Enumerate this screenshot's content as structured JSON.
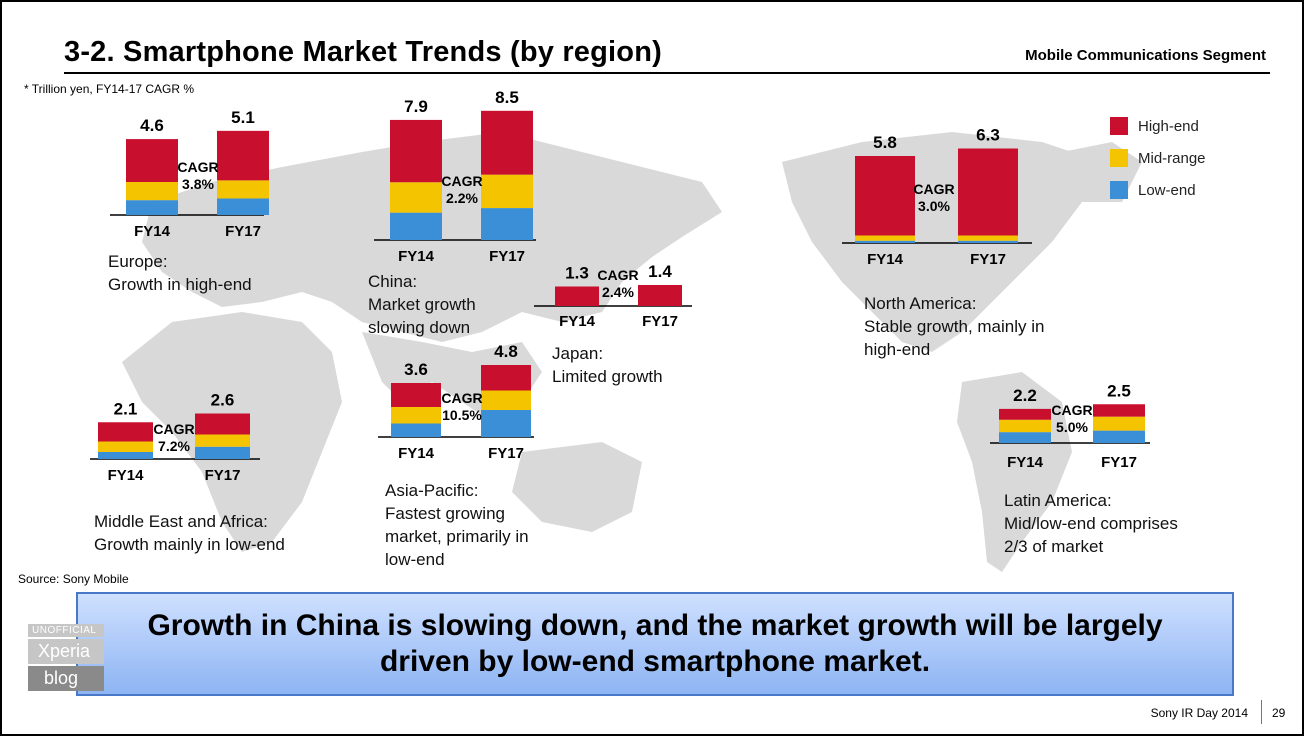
{
  "header": {
    "title": "3-2. Smartphone Market Trends (by region)",
    "segment": "Mobile Communications Segment",
    "note": "* Trillion yen, FY14-17 CAGR %"
  },
  "colors": {
    "high_end": "#c8102e",
    "mid_range": "#f5c400",
    "low_end": "#3b8fd6",
    "banner_border": "#4a78c8"
  },
  "chart_data": {
    "type": "bar",
    "stacked": true,
    "units": "Trillion yen",
    "legend": [
      "High-end",
      "Mid-range",
      "Low-end"
    ],
    "regions": [
      {
        "name": "Europe",
        "years": [
          "FY14",
          "FY17"
        ],
        "totals": [
          "4.6",
          "5.1"
        ],
        "series": {
          "high_end": [
            2.6,
            3.0
          ],
          "mid_range": [
            1.1,
            1.1
          ],
          "low_end": [
            0.9,
            1.0
          ]
        },
        "cagr_label": "CAGR",
        "cagr": "3.8%",
        "desc": [
          "Europe:",
          "Growth in high-end"
        ]
      },
      {
        "name": "China",
        "years": [
          "FY14",
          "FY17"
        ],
        "totals": [
          "7.9",
          "8.5"
        ],
        "series": {
          "high_end": [
            4.1,
            4.2
          ],
          "mid_range": [
            2.0,
            2.2
          ],
          "low_end": [
            1.8,
            2.1
          ]
        },
        "cagr_label": "CAGR",
        "cagr": "2.2%",
        "desc": [
          "China:",
          "Market growth",
          "slowing down"
        ]
      },
      {
        "name": "Japan",
        "years": [
          "FY14",
          "FY17"
        ],
        "totals": [
          "1.3",
          "1.4"
        ],
        "series": {
          "high_end": [
            1.3,
            1.4
          ],
          "mid_range": [
            0,
            0
          ],
          "low_end": [
            0,
            0
          ]
        },
        "cagr_label": "CAGR",
        "cagr": "2.4%",
        "desc": [
          "Japan:",
          "Limited growth"
        ]
      },
      {
        "name": "North America",
        "years": [
          "FY14",
          "FY17"
        ],
        "totals": [
          "5.8",
          "6.3"
        ],
        "series": {
          "high_end": [
            5.3,
            5.8
          ],
          "mid_range": [
            0.35,
            0.35
          ],
          "low_end": [
            0.15,
            0.15
          ]
        },
        "cagr_label": "CAGR",
        "cagr": "3.0%",
        "desc": [
          "North America:",
          "Stable growth, mainly in",
          "high-end"
        ]
      },
      {
        "name": "Middle East and Africa",
        "years": [
          "FY14",
          "FY17"
        ],
        "totals": [
          "2.1",
          "2.6"
        ],
        "series": {
          "high_end": [
            1.1,
            1.2
          ],
          "mid_range": [
            0.6,
            0.7
          ],
          "low_end": [
            0.4,
            0.7
          ]
        },
        "cagr_label": "CAGR",
        "cagr": "7.2%",
        "desc": [
          "Middle East and Africa:",
          "Growth mainly in low-end"
        ]
      },
      {
        "name": "Asia-Pacific",
        "years": [
          "FY14",
          "FY17"
        ],
        "totals": [
          "3.6",
          "4.8"
        ],
        "series": {
          "high_end": [
            1.6,
            1.7
          ],
          "mid_range": [
            1.1,
            1.3
          ],
          "low_end": [
            0.9,
            1.8
          ]
        },
        "cagr_label": "CAGR",
        "cagr": "10.5%",
        "desc": [
          "Asia-Pacific:",
          "Fastest growing",
          "market, primarily in",
          "low-end"
        ]
      },
      {
        "name": "Latin America",
        "years": [
          "FY14",
          "FY17"
        ],
        "totals": [
          "2.2",
          "2.5"
        ],
        "series": {
          "high_end": [
            0.7,
            0.8
          ],
          "mid_range": [
            0.8,
            0.9
          ],
          "low_end": [
            0.7,
            0.8
          ]
        },
        "cagr_label": "CAGR",
        "cagr": "5.0%",
        "desc": [
          "Latin America:",
          "Mid/low-end comprises",
          "2/3 of market"
        ]
      }
    ]
  },
  "banner": {
    "text": "Growth in China is slowing down, and the market growth will be largely driven by low-end smartphone market."
  },
  "watermark": {
    "line1": "UNOFFICIAL",
    "line2": "Xperia",
    "line3": "blog"
  },
  "footer": {
    "source": "Source: Sony Mobile",
    "event": "Sony IR Day 2014",
    "page": "29"
  }
}
